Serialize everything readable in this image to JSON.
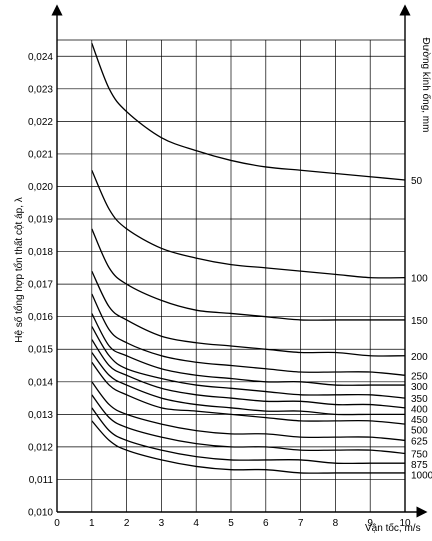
{
  "chart_data": {
    "type": "line",
    "title": "",
    "xlabel": "Vận tốc, m/s",
    "ylabel": "Hệ số tổng hợp tổn thất cột áp, λ",
    "right_axis_label": "Đường kính ống, mm",
    "xlim": [
      0,
      10
    ],
    "ylim": [
      0.01,
      0.0245
    ],
    "x_ticks": [
      "0",
      "1",
      "2",
      "3",
      "4",
      "5",
      "6",
      "7",
      "8",
      "9",
      "10"
    ],
    "y_ticks": [
      "0,010",
      "0,011",
      "0,012",
      "0,013",
      "0,014",
      "0,015",
      "0,016",
      "0,017",
      "0,018",
      "0,019",
      "0,020",
      "0,021",
      "0,022",
      "0,023",
      "0,024"
    ],
    "grid": true,
    "x": [
      1,
      1.5,
      2,
      3,
      4,
      5,
      6,
      7,
      8,
      9,
      10
    ],
    "series": [
      {
        "name": "50",
        "values": [
          0.0244,
          0.023,
          0.0223,
          0.0215,
          0.0211,
          0.0208,
          0.0206,
          0.0205,
          0.0204,
          0.0203,
          0.0202
        ]
      },
      {
        "name": "100",
        "values": [
          0.0205,
          0.0193,
          0.0187,
          0.0181,
          0.0178,
          0.0176,
          0.0175,
          0.0174,
          0.0173,
          0.0172,
          0.0172
        ]
      },
      {
        "name": "150",
        "values": [
          0.0187,
          0.0175,
          0.017,
          0.0165,
          0.0162,
          0.0161,
          0.016,
          0.0159,
          0.0159,
          0.0159,
          0.0159
        ]
      },
      {
        "name": "200",
        "values": [
          0.0174,
          0.0163,
          0.0159,
          0.0154,
          0.0152,
          0.0151,
          0.015,
          0.0149,
          0.0149,
          0.0148,
          0.0148
        ]
      },
      {
        "name": "250",
        "values": [
          0.0167,
          0.0156,
          0.0152,
          0.0148,
          0.0146,
          0.0145,
          0.0144,
          0.0143,
          0.0143,
          0.0143,
          0.0142
        ]
      },
      {
        "name": "300",
        "values": [
          0.0161,
          0.0151,
          0.0148,
          0.0144,
          0.0142,
          0.0141,
          0.014,
          0.014,
          0.0139,
          0.0139,
          0.0139
        ]
      },
      {
        "name": "350",
        "values": [
          0.0157,
          0.0148,
          0.0144,
          0.0141,
          0.0139,
          0.0138,
          0.0137,
          0.0136,
          0.0136,
          0.0136,
          0.0135
        ]
      },
      {
        "name": "400",
        "values": [
          0.0153,
          0.0145,
          0.0142,
          0.0138,
          0.0136,
          0.0135,
          0.0134,
          0.0134,
          0.0133,
          0.0133,
          0.0132
        ]
      },
      {
        "name": "450",
        "values": [
          0.0149,
          0.0142,
          0.0139,
          0.0135,
          0.0133,
          0.0132,
          0.0131,
          0.0131,
          0.013,
          0.013,
          0.013
        ]
      },
      {
        "name": "500",
        "values": [
          0.0146,
          0.0139,
          0.0136,
          0.0132,
          0.0131,
          0.013,
          0.0129,
          0.0128,
          0.0128,
          0.0128,
          0.0127
        ]
      },
      {
        "name": "625",
        "values": [
          0.014,
          0.0133,
          0.013,
          0.0127,
          0.0125,
          0.0124,
          0.0124,
          0.0123,
          0.0123,
          0.0123,
          0.0122
        ]
      },
      {
        "name": "750",
        "values": [
          0.0136,
          0.0129,
          0.0126,
          0.0123,
          0.0121,
          0.012,
          0.012,
          0.0119,
          0.0119,
          0.0119,
          0.0118
        ]
      },
      {
        "name": "875",
        "values": [
          0.0132,
          0.0125,
          0.0122,
          0.0119,
          0.0117,
          0.0116,
          0.0116,
          0.0116,
          0.0115,
          0.0115,
          0.0115
        ]
      },
      {
        "name": "1000",
        "values": [
          0.0128,
          0.0122,
          0.0119,
          0.0116,
          0.0114,
          0.0113,
          0.0113,
          0.0112,
          0.0112,
          0.0112,
          0.0112
        ]
      }
    ]
  }
}
